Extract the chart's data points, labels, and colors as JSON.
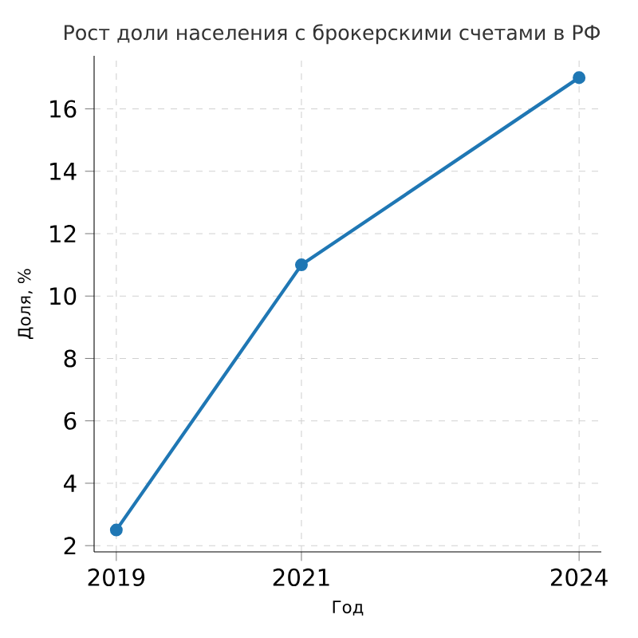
{
  "chart_data": {
    "type": "line",
    "title": "Рост доли населения с брокерскими счетами в РФ",
    "xlabel": "Год",
    "ylabel": "Доля, %",
    "x": [
      2019,
      2021,
      2024
    ],
    "series": [
      {
        "color": "#1f77b4",
        "values": [
          2.5,
          11,
          17
        ]
      }
    ],
    "xlim": [
      2018.76,
      2024.24
    ],
    "ylim": [
      1.8,
      17.7
    ],
    "xticks": [
      2019,
      2021,
      2024
    ],
    "yticks": [
      2,
      4,
      6,
      8,
      10,
      12,
      14,
      16
    ],
    "grid": true,
    "marker": "circle",
    "line_style": "solid"
  }
}
